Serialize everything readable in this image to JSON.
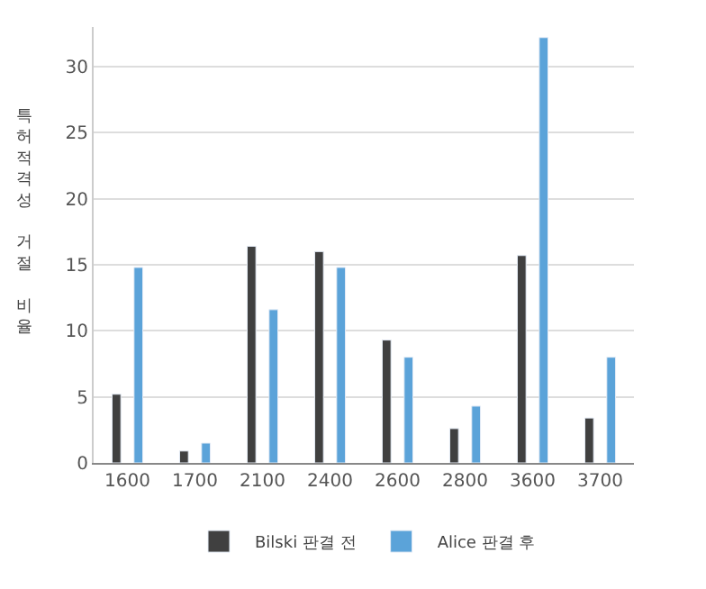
{
  "chart_data": {
    "type": "bar",
    "ylabel": "특허적격성 거절 비율",
    "categories": [
      "1600",
      "1700",
      "2100",
      "2400",
      "2600",
      "2800",
      "3600",
      "3700"
    ],
    "series": [
      {
        "name": "Bilski 판결 전",
        "color": "#404040",
        "values": [
          5.2,
          0.9,
          16.4,
          16.0,
          9.3,
          2.6,
          15.7,
          3.4
        ]
      },
      {
        "name": "Alice 판결 후",
        "color": "#5ba3d9",
        "values": [
          14.8,
          1.5,
          11.6,
          14.8,
          8.0,
          4.3,
          32.2,
          8.0
        ]
      }
    ],
    "ylim": [
      0,
      33
    ],
    "yticks": [
      0,
      5,
      10,
      15,
      20,
      25,
      30
    ],
    "grid": "y",
    "legend": "bottom"
  }
}
